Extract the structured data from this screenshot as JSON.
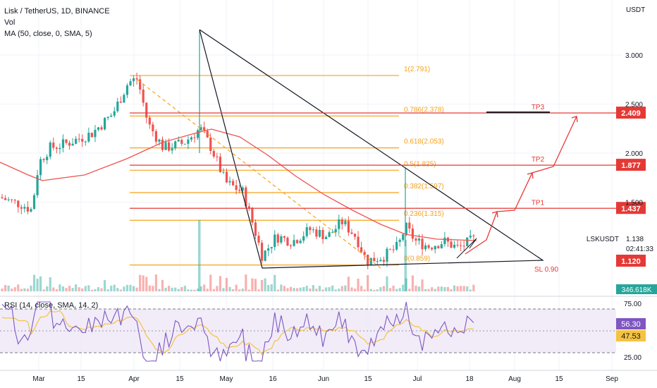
{
  "header": {
    "symbol_line": "Lisk / TetherUS, 1D, BINANCE",
    "volume_label": "Vol",
    "ma_label": "MA (50, close, 0, SMA, 5)",
    "rsi_label": "RSI (14, close, SMA, 14, 2)",
    "currency": "USDT"
  },
  "colors": {
    "up": "#26a69a",
    "down": "#ef5350",
    "fib": "#f7a21b",
    "ma": "#ef5350",
    "target": "#e53935",
    "rsi": "#7e57c2",
    "rsi_ma": "#f5c342",
    "rsi_band": "#ede7f6"
  },
  "chart_data": {
    "type": "candlestick",
    "x_tick_labels": [
      "Mar",
      "15",
      "Apr",
      "15",
      "May",
      "16",
      "Jun",
      "15",
      "Jul",
      "18",
      "Aug",
      "15",
      "Sep"
    ],
    "y_ticks": [
      3.0,
      2.5,
      2.0,
      1.5
    ],
    "y_tick_labels": [
      "3.000",
      "2.500",
      "2.000",
      "1.500"
    ],
    "fib_levels": [
      {
        "label": "1(2.791)",
        "value": 2.791
      },
      {
        "label": "0.786(2.378)",
        "value": 2.378
      },
      {
        "label": "0.618(2.053)",
        "value": 2.053
      },
      {
        "label": "0.5(1.825)",
        "value": 1.825
      },
      {
        "label": "0.382(1.597)",
        "value": 1.597
      },
      {
        "label": "0.236(1.315)",
        "value": 1.315
      },
      {
        "label": "0(0.859)",
        "value": 0.859
      }
    ],
    "targets": [
      {
        "label": "TP3",
        "value": 2.409,
        "price_label": "2.409"
      },
      {
        "label": "TP2",
        "value": 1.877,
        "price_label": "1.877"
      },
      {
        "label": "TP1",
        "value": 1.437,
        "price_label": "1.437"
      }
    ],
    "stop_loss": {
      "label": "SL 0.90",
      "value": 0.9
    },
    "last_price": {
      "label": "LSKUSDT",
      "value": "1.138",
      "countdown": "02:41:33"
    },
    "sl_price_label": "1.120",
    "volume_label": "346.618K",
    "rsi": {
      "value": "56.30",
      "ma_value": "47.53",
      "levels": [
        "75.00",
        "25.00"
      ],
      "upper": 70,
      "lower": 30
    }
  }
}
